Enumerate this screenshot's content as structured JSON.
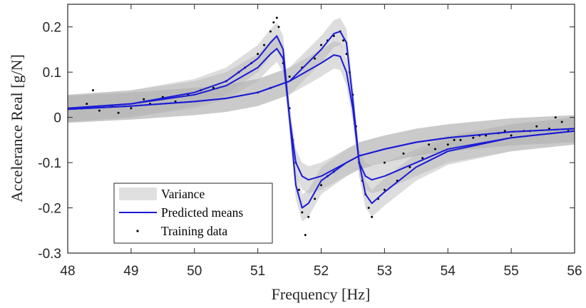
{
  "chart_data": {
    "type": "line",
    "xlabel": "Frequency [Hz]",
    "ylabel": "Accelerance Real [g/N]",
    "xlim": [
      48,
      56
    ],
    "ylim": [
      -0.3,
      0.25
    ],
    "xticks": [
      "48",
      "49",
      "50",
      "51",
      "52",
      "53",
      "54",
      "55",
      "56"
    ],
    "yticks": [
      "-0.3",
      "-0.2",
      "-0.1",
      "0",
      "0.1",
      "0.2"
    ],
    "legend_position": "bottom-left",
    "legend": [
      "Variance",
      "Predicted means",
      "Training data"
    ],
    "colors": {
      "variance_band": "#b4b4b4",
      "variance_legend": "#e0e0e0",
      "predicted_means": "#1a1ad6",
      "training_data": "#000000",
      "axis": "#262626"
    },
    "series": [
      {
        "name": "Predicted means",
        "curves": [
          {
            "x": [
              48,
              49,
              50,
              50.5,
              51,
              51.2,
              51.3,
              51.4,
              51.5,
              51.6,
              51.7,
              51.8,
              52,
              52.2,
              52.4,
              52.6,
              53,
              53.5,
              54,
              55,
              56
            ],
            "y": [
              0.02,
              0.03,
              0.055,
              0.08,
              0.13,
              0.165,
              0.18,
              0.15,
              0.0,
              -0.15,
              -0.2,
              -0.19,
              -0.14,
              -0.12,
              -0.1,
              -0.085,
              -0.07,
              -0.055,
              -0.045,
              -0.032,
              -0.025
            ]
          },
          {
            "x": [
              48,
              49,
              50,
              50.5,
              51,
              51.2,
              51.3,
              51.4,
              51.5,
              51.6,
              51.7,
              51.8,
              52,
              52.2,
              52.4,
              52.6,
              53,
              53.5,
              54,
              55,
              56
            ],
            "y": [
              0.02,
              0.03,
              0.05,
              0.07,
              0.11,
              0.14,
              0.152,
              0.13,
              0.0,
              -0.1,
              -0.13,
              -0.138,
              -0.13,
              -0.115,
              -0.1,
              -0.085,
              -0.07,
              -0.055,
              -0.045,
              -0.032,
              -0.025
            ]
          },
          {
            "x": [
              48,
              49,
              50,
              50.5,
              51,
              51.5,
              52,
              52.2,
              52.3,
              52.4,
              52.5,
              52.6,
              52.7,
              52.8,
              53,
              53.5,
              54,
              55,
              56
            ],
            "y": [
              0.018,
              0.025,
              0.035,
              0.042,
              0.055,
              0.08,
              0.15,
              0.185,
              0.19,
              0.165,
              0.04,
              -0.1,
              -0.17,
              -0.19,
              -0.165,
              -0.11,
              -0.075,
              -0.045,
              -0.03
            ]
          },
          {
            "x": [
              48,
              49,
              50,
              50.5,
              51,
              51.5,
              52,
              52.2,
              52.3,
              52.4,
              52.5,
              52.6,
              52.7,
              52.8,
              53,
              53.5,
              54,
              55,
              56
            ],
            "y": [
              0.018,
              0.025,
              0.035,
              0.042,
              0.055,
              0.08,
              0.12,
              0.138,
              0.135,
              0.1,
              0.02,
              -0.1,
              -0.13,
              -0.138,
              -0.13,
              -0.1,
              -0.07,
              -0.045,
              -0.03
            ]
          }
        ]
      },
      {
        "name": "Training data",
        "points": [
          [
            48.1,
            0.02
          ],
          [
            48.3,
            0.03
          ],
          [
            48.4,
            0.06
          ],
          [
            48.5,
            0.015
          ],
          [
            48.7,
            0.025
          ],
          [
            48.8,
            0.01
          ],
          [
            49.0,
            0.02
          ],
          [
            49.2,
            0.04
          ],
          [
            49.3,
            0.03
          ],
          [
            49.5,
            0.045
          ],
          [
            49.7,
            0.035
          ],
          [
            49.9,
            0.05
          ],
          [
            50.1,
            0.06
          ],
          [
            50.3,
            0.065
          ],
          [
            50.5,
            0.08
          ],
          [
            50.7,
            0.1
          ],
          [
            50.8,
            0.11
          ],
          [
            50.9,
            0.12
          ],
          [
            51.0,
            0.14
          ],
          [
            51.1,
            0.16
          ],
          [
            51.2,
            0.19
          ],
          [
            51.25,
            0.21
          ],
          [
            51.3,
            0.22
          ],
          [
            51.33,
            0.2
          ],
          [
            51.4,
            0.12
          ],
          [
            51.5,
            0.02
          ],
          [
            51.55,
            -0.05
          ],
          [
            51.6,
            -0.1
          ],
          [
            51.65,
            -0.16
          ],
          [
            51.7,
            -0.21
          ],
          [
            51.75,
            -0.26
          ],
          [
            51.8,
            -0.22
          ],
          [
            51.9,
            -0.18
          ],
          [
            52.0,
            -0.15
          ],
          [
            52.1,
            -0.13
          ],
          [
            52.2,
            -0.12
          ],
          [
            51.0,
            0.055
          ],
          [
            51.2,
            0.065
          ],
          [
            51.5,
            0.09
          ],
          [
            51.7,
            0.11
          ],
          [
            51.9,
            0.13
          ],
          [
            52.0,
            0.16
          ],
          [
            52.1,
            0.17
          ],
          [
            52.2,
            0.18
          ],
          [
            52.3,
            0.19
          ],
          [
            52.35,
            0.17
          ],
          [
            52.4,
            0.14
          ],
          [
            52.45,
            0.1
          ],
          [
            52.5,
            0.05
          ],
          [
            52.55,
            -0.02
          ],
          [
            52.6,
            -0.1
          ],
          [
            52.65,
            -0.14
          ],
          [
            52.7,
            -0.17
          ],
          [
            52.75,
            -0.2
          ],
          [
            52.8,
            -0.22
          ],
          [
            52.9,
            -0.18
          ],
          [
            53.0,
            -0.16
          ],
          [
            53.2,
            -0.14
          ],
          [
            53.4,
            -0.11
          ],
          [
            53.6,
            -0.09
          ],
          [
            53.8,
            -0.07
          ],
          [
            54.0,
            -0.06
          ],
          [
            54.2,
            -0.05
          ],
          [
            54.4,
            -0.045
          ],
          [
            54.6,
            -0.04
          ],
          [
            54.8,
            -0.035
          ],
          [
            55.0,
            -0.04
          ],
          [
            55.2,
            -0.03
          ],
          [
            55.4,
            -0.02
          ],
          [
            55.6,
            -0.025
          ],
          [
            55.8,
            -0.01
          ],
          [
            55.9,
            -0.03
          ],
          [
            53.0,
            -0.1
          ],
          [
            53.3,
            -0.08
          ],
          [
            53.7,
            -0.06
          ],
          [
            54.1,
            -0.05
          ],
          [
            54.5,
            -0.04
          ],
          [
            54.9,
            -0.03
          ],
          [
            55.3,
            -0.03
          ],
          [
            55.7,
            0.0
          ]
        ]
      }
    ]
  }
}
